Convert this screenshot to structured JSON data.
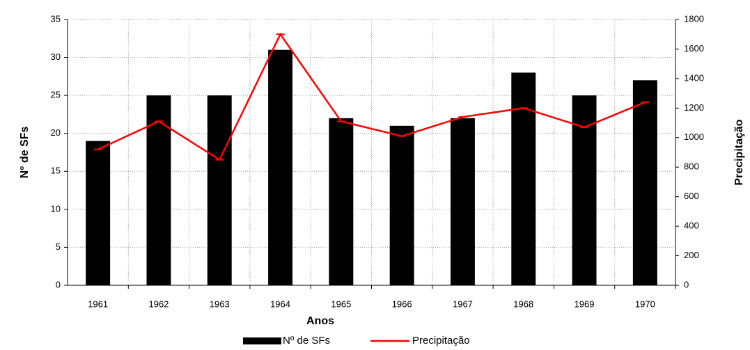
{
  "chart_data": {
    "type": "bar",
    "categories": [
      "1961",
      "1962",
      "1963",
      "1964",
      "1965",
      "1966",
      "1967",
      "1968",
      "1969",
      "1970"
    ],
    "series": [
      {
        "name": "Nº de SFs",
        "color": "#000000",
        "values": [
          19,
          25,
          25,
          31,
          22,
          21,
          22,
          28,
          25,
          27
        ]
      },
      {
        "name": "Precipitação",
        "color": "#ff0000",
        "type": "line",
        "axis": "y2",
        "values": [
          920,
          1110,
          850,
          1700,
          1110,
          1010,
          1140,
          1200,
          1070,
          1240
        ]
      }
    ],
    "xlabel": "Anos",
    "ylabel": "N° de SFs",
    "y2label": "Precipitação",
    "ylim": [
      0,
      35
    ],
    "yticks": [
      0,
      5,
      10,
      15,
      20,
      25,
      30,
      35
    ],
    "y2lim": [
      0,
      1800
    ],
    "y2ticks": [
      0,
      200,
      400,
      600,
      800,
      1000,
      1200,
      1400,
      1600,
      1800
    ],
    "grid": true,
    "legend": "bottom"
  }
}
